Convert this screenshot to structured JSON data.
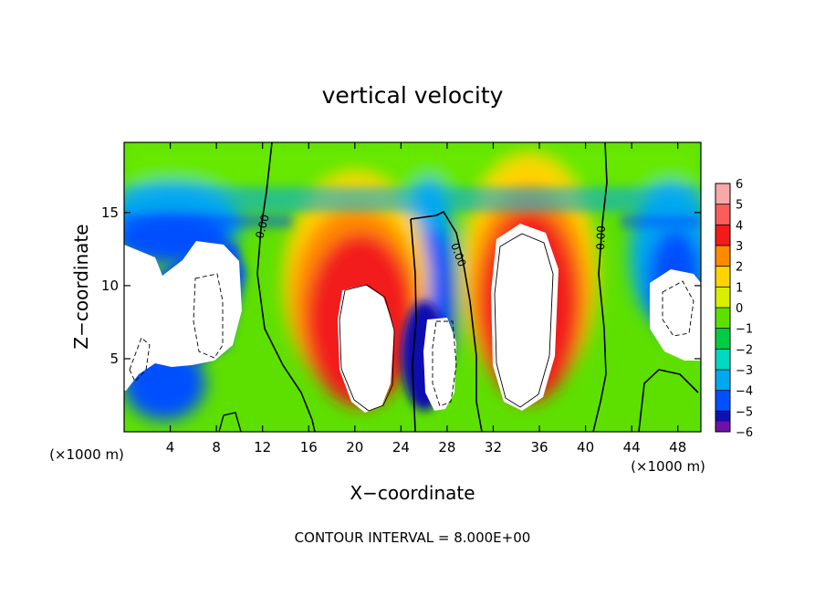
{
  "chart_data": {
    "type": "heatmap",
    "title": "vertical velocity",
    "xlabel": "X−coordinate",
    "ylabel": "Z−coordinate",
    "x_unit": "(×1000 m)",
    "xlim": [
      0,
      50
    ],
    "ylim": [
      0,
      19.8
    ],
    "x_ticks": [
      4,
      8,
      12,
      16,
      20,
      24,
      28,
      32,
      36,
      40,
      44,
      48
    ],
    "y_ticks": [
      5,
      10,
      15
    ],
    "footer": "CONTOUR INTERVAL = 8.000E+00",
    "contour_labels": [
      "0.00",
      "0.00",
      "0.00"
    ],
    "colorbar": {
      "levels": [
        6,
        5,
        4,
        3,
        2,
        1,
        0,
        -1,
        -2,
        -3,
        -4,
        -5,
        -6
      ],
      "labels": [
        "6",
        "5",
        "4",
        "3",
        "2",
        "1",
        "0",
        "−1",
        "−2",
        "−3",
        "−4",
        "−5",
        "−6"
      ],
      "colors": [
        "#f7a8a8",
        "#fb5c5c",
        "#f21a1a",
        "#ff8a00",
        "#ffd400",
        "#d8f000",
        "#5de000",
        "#00cc44",
        "#00d8c0",
        "#00a8f0",
        "#0050ff",
        "#1010b0",
        "#7010a8"
      ]
    }
  }
}
